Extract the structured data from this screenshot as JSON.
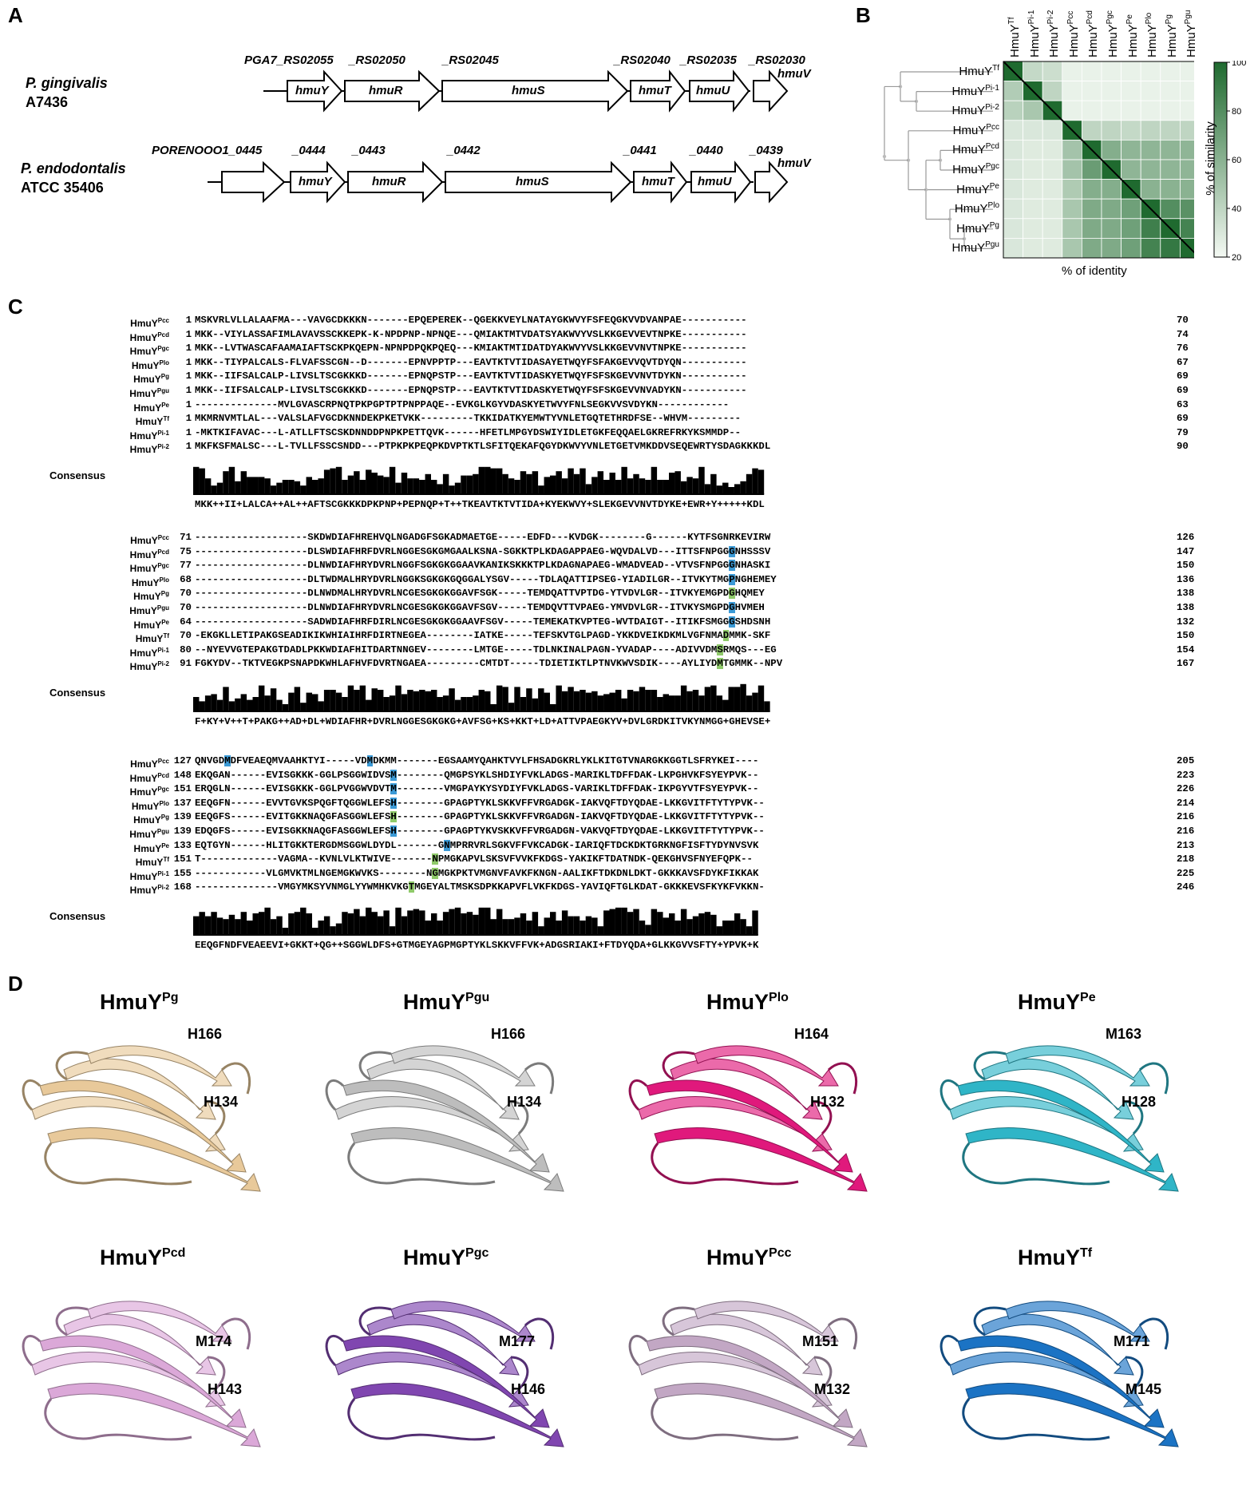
{
  "panels": {
    "a": "A",
    "b": "B",
    "c": "C",
    "d": "D"
  },
  "panel_a": {
    "pg": {
      "organism_species": "P. gingivalis",
      "organism_strain": "A7436",
      "locus_tags": [
        "PGA7_RS02055",
        "_RS02050",
        "_RS02045",
        "_RS02040",
        "_RS02035",
        "_RS02030"
      ],
      "genes": [
        "hmuY",
        "hmuR",
        "hmuS",
        "hmuT",
        "hmuU",
        "hmuV"
      ]
    },
    "pe": {
      "organism_species": "P. endodontalis",
      "organism_strain": "ATCC 35406",
      "locus_tags": [
        "PORENOOO1_0445",
        "_0444",
        "_0443",
        "_0442",
        "_0441",
        "_0440",
        "_0439"
      ],
      "genes": [
        "hmuY",
        "hmuR",
        "hmuS",
        "hmuT",
        "hmuU",
        "hmuV"
      ]
    }
  },
  "panel_b": {
    "proteins": [
      "Tf",
      "Pi-1",
      "Pi-2",
      "Pcc",
      "Pcd",
      "Pgc",
      "Pe",
      "Plo",
      "Pg",
      "Pgu"
    ],
    "prefix": "HmuY",
    "xlabel": "% of identity",
    "colorbar_label": "% of similarity",
    "colorbar_ticks": [
      "100",
      "80",
      "60",
      "40",
      "20"
    ],
    "colors": {
      "low": "#f4f9f3",
      "high": "#1f6a2f"
    },
    "chart_data": {
      "type": "heatmap",
      "xlabel": "% of identity",
      "colorbar_label": "% of similarity",
      "colorbar_range": [
        20,
        100
      ],
      "rows": [
        "Tf",
        "Pi-1",
        "Pi-2",
        "Pcc",
        "Pcd",
        "Pgc",
        "Pe",
        "Plo",
        "Pg",
        "Pgu"
      ],
      "cols": [
        "Tf",
        "Pi-1",
        "Pi-2",
        "Pcc",
        "Pcd",
        "Pgc",
        "Pe",
        "Plo",
        "Pg",
        "Pgu"
      ],
      "values": [
        [
          100,
          38,
          35,
          24,
          24,
          24,
          24,
          24,
          24,
          24
        ],
        [
          45,
          100,
          40,
          24,
          24,
          24,
          24,
          24,
          24,
          24
        ],
        [
          42,
          48,
          100,
          24,
          24,
          24,
          24,
          24,
          24,
          24
        ],
        [
          30,
          30,
          30,
          100,
          40,
          40,
          38,
          40,
          40,
          40
        ],
        [
          30,
          28,
          28,
          50,
          100,
          62,
          58,
          58,
          58,
          58
        ],
        [
          30,
          28,
          28,
          50,
          72,
          100,
          58,
          58,
          58,
          58
        ],
        [
          30,
          28,
          28,
          46,
          62,
          62,
          100,
          60,
          60,
          60
        ],
        [
          30,
          28,
          28,
          48,
          64,
          64,
          70,
          100,
          80,
          78
        ],
        [
          30,
          28,
          28,
          48,
          64,
          64,
          70,
          88,
          100,
          86
        ],
        [
          30,
          28,
          28,
          48,
          64,
          64,
          70,
          86,
          92,
          100
        ]
      ]
    }
  },
  "panel_c": {
    "names": [
      "Pcc",
      "Pcd",
      "Pgc",
      "Plo",
      "Pg",
      "Pgu",
      "Pe",
      "Tf",
      "Pi-1",
      "Pi-2"
    ],
    "consensus_label": "Consensus",
    "blocks": [
      {
        "starts": [
          "1",
          "1",
          "1",
          "1",
          "1",
          "1",
          "1",
          "1",
          "1",
          "1"
        ],
        "ends": [
          "70",
          "74",
          "76",
          "67",
          "69",
          "69",
          "63",
          "69",
          "79",
          "90"
        ],
        "seqs": [
          "MSKVRLVLLALAAFMA---VAVGCDKKKN-------EPQEPEREK--QGEKKVEYLNATAYGKWVYFSFEQGKVVDVANPAE-----------",
          "MKK--VIYLASSAFIMLAVAVSSCKKEPK-K-NPDPNP-NPNQE---QMIAKTMTVDATSYAKWVYVSLKKGEVVEVTNPKE-----------",
          "MKK--LVTWASCAFAAMAIAFTSCKPKQEPN-NPNPDPQKPQEQ---KMIAKTMTIDATDYAKWVYVSLKKGEVVNVTNPKE-----------",
          "MKK--TIYPALCALS-FLVAFSSCGN--D-------EPNVPPTP---EAVTKTVTIDASAYETWQYFSFAKGEVVQVTDYQN-----------",
          "MKK--IIFSALCALP-LIVSLTSCGKKKD-------EPNQPSTP---EAVTKTVTIDASKYETWQYFSFSKGEVVNVTDYKN-----------",
          "MKK--IIFSALCALP-LIVSLTSCGKKKD-------EPNQPSTP---EAVTKTVTIDASKYETWQYFSFSKGEVVNVADYKN-----------",
          "--------------MVLGVASCRPNQTPKPGPTPTPNPPAQE--EVKGLKGYVDASKYETWVYFNLSEGKVVSVDYKN------------",
          "MKMRNVMTLAL---VALSLAFVGCDKNNDEKPKETVKK---------TKKIDATKYEMWTYVNLETGQTETHRDFSE--WHVM---------",
          "-MKTKIFAVAC---L-ATLLFTSCSKDNNDDPNPKPETTQVK------HFETLMPGYDSWIYIDLETGKFEQQAELGKREFRKYKSMMDP--",
          "MKFKSFMALSC---L-TVLLFSSCSNDD---PTPKPKPEQPKDVPTKTLSFITQEKAFQGYDKWVYVNLETGETVMKDDVSEQEWRTYSDAGKKKDL"
        ],
        "consensus": "MKK++II+LALCA++AL++AFTSCGKKKDPKPNP+PEPNQP+T++TKEAVTKTVTIDA+KYEKWVY+SLEKGEVVNVTDYKE+EWR+Y+++++KDL"
      },
      {
        "starts": [
          "71",
          "75",
          "77",
          "68",
          "70",
          "70",
          "64",
          "70",
          "80",
          "91"
        ],
        "ends": [
          "126",
          "147",
          "150",
          "136",
          "138",
          "138",
          "132",
          "150",
          "154",
          "167"
        ],
        "seqs": [
          "-------------------SKDWDIAFHREHVQLNGADGFSGKADMAETGE-----EDFD---KVDGK--------G------KYTFSGNRKEVIRW",
          "-------------------DLSWDIAFHRFDVRLNGGESGKGMGAALKSNA-SGKKTPLKDAGAPPAEG-WQVDALVD---ITTSFNPGGGNHSSSV",
          "-------------------DLNWDIAFHRYDVRLNGGFSGKGKGGAAVKANIKSKKKTPLKDAGNAPAEG-WMADVEAD--VTVSFNPGGGNHASKI",
          "-------------------DLTWDMALHRYDVRLNGGKSGKGKGQGGALYSGV-----TDLAQATTIPSEG-YIADILGR--ITVKYTMGPNGHEMEY",
          "-------------------DLNWDMALHRYDVRLNCGESGKGKGGAVFSGK-----TEMDQATTVPTDG-YTVDVLGR--ITVKYEMGPDGHQMEY",
          "-------------------DLNWDIAFHRYDVRLNCGESGKGKGGAVFSGV-----TEMDQVTTVPAEG-YMVDVLGR--ITVKYSMGPDGHVMEH",
          "-------------------SADWDIAFHRFDIRLNCGESGKGKGGAAVFSGV-----TEMEKATKVPTEG-WVTDAIGT--ITIKFSMGGGSHDSNH",
          "-EKGKLLETIPAKGSEADIKIKWHIAIHRFDIRTNEGEA--------IATKE-----TEFSKVTGLPAGD-YKKDVEIKDKMLVGFNMADMMK-SKF",
          "--NYEVVGTEPAKGTDADLPKKWDIAFHITDARTNNGEV--------LMTGE-----TDLNKINALPAGN-YVADAP----ADIVVDMSRMQS---EG",
          "FGKYDV--TKTVEGKPSNAPDKWHLAFHVFDVRTNGAEA---------CMTDT-----TDIETIKTLPTNVKWVSDIK----AYLIYDMTGMMK--NPV"
        ],
        "consensus": "F+KY+V++T+PAKG++AD+DL+WDIAFHR+DVRLNGGESGKGKG+AVFSG+KS+KKT+LD+ATTVPAEGKYV+DVLGRDKITVKYNMGG+GHEVSE+"
      },
      {
        "starts": [
          "127",
          "148",
          "151",
          "137",
          "139",
          "139",
          "133",
          "151",
          "155",
          "168"
        ],
        "ends": [
          "205",
          "223",
          "226",
          "214",
          "216",
          "216",
          "213",
          "218",
          "225",
          "246"
        ],
        "seqs": [
          "QNVGDMDFVEAEQMVAAHKTYI-----VDMDKMM-------EGSAAMYQAHKTVYLFHSADGKRLYKLKITGTVNARGKKGGTLSFRYKEI----",
          "EKQGAN------EVISGKKK-GGLPSGGWIDVSM--------QMGPSYKLSHDIYFVKLADGS-MARIKLTDFFDAK-LKPGHVKFSYEYPVK--",
          "ERQGLN------EVISGKKK-GGLPVGGWVDVTM--------VMGPAYKYSYDIYFVKLADGS-VARIKLTDFFDAK-IKPGYVTFSYEYPVK--",
          "EEQGFN------EVVTGVKSPQGFTQGGWLEFSH--------GPAGPTYKLSKKVFFVRGADGK-IAKVQFTDYQDAE-LKKGVITFTYTYPVK--",
          "EEQGFS------EVITGKKNAQGFASGGWLEFSH--------GPAGPTYKLSKKVFFVRGADGN-IAKVQFTDYQDAE-LKKGVITFTYTYPVK--",
          "EDQGFS------EVISGKKNAQGFASGGWLEFSH--------GPAGPTYKVSKKVFFVRGADGN-VAKVQFTDYQDAE-LKKGVITFTYTYPVK--",
          "EQTGYN------HLITGKKTERGDMSGGWLDYDL-------GNMPRRVRLSGKVFFVKCADGK-IARIQFTDCKDKTGRKNGFISFTYDYNVSVK",
          "T-------------VAGMA--KVNLVLKTWIVE-------NPMGKAPVLSKSVFVVKFKDGS-YAKIKFTDATNDK-QEKGHVSFNYEFQPK--",
          "------------VLGMVKTMLNGEMGKWVKS--------NGMGKPKTVMGNVFAVKFKNGN-AALIKFTDKDNLDKT-GKKKAVSFDYKFIKKAK",
          "--------------VMGYMKSYVNMGLYYWMHKVKGTMGEYALTMSKSDPKKAPVFLVKFKDGS-YAVIQFTGLKDAT-GKKKEVSFKYKFVKKN-"
        ],
        "consensus": "EEQGFNDFVEAEEVI+GKKT+QG++SGGWLDFS+GTMGEYAGPMGPTYKLSKKVFFVK+ADGSRIAKI+FTDYQDA+GLKKGVVSFTY+YPVK+K"
      }
    ]
  },
  "panel_d": {
    "structures": [
      {
        "name": "HmuY",
        "sup": "Pg",
        "residues": [
          "H166",
          "H134"
        ],
        "color": "#e8c99a"
      },
      {
        "name": "HmuY",
        "sup": "Pgu",
        "residues": [
          "H166",
          "H134"
        ],
        "color": "#bdbdbd"
      },
      {
        "name": "HmuY",
        "sup": "Plo",
        "residues": [
          "H164",
          "H132"
        ],
        "color": "#e0197c"
      },
      {
        "name": "HmuY",
        "sup": "Pe",
        "residues": [
          "M163",
          "H128"
        ],
        "color": "#2fb5c7"
      },
      {
        "name": "HmuY",
        "sup": "Pcd",
        "residues": [
          "M174",
          "H143"
        ],
        "color": "#dba8d8"
      },
      {
        "name": "HmuY",
        "sup": "Pgc",
        "residues": [
          "M177",
          "H146"
        ],
        "color": "#8046b0"
      },
      {
        "name": "HmuY",
        "sup": "Pcc",
        "residues": [
          "M151",
          "M132"
        ],
        "color": "#c2a7c4"
      },
      {
        "name": "HmuY",
        "sup": "Tf",
        "residues": [
          "M171",
          "M145"
        ],
        "color": "#1b73c4"
      }
    ]
  }
}
